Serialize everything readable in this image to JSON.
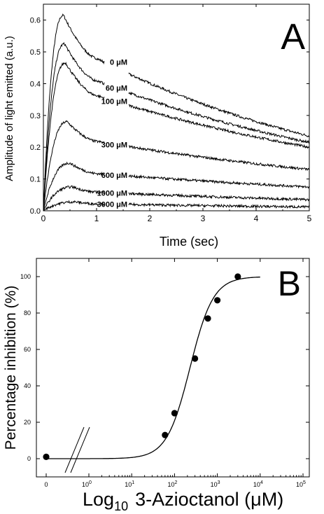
{
  "chart_data": [
    {
      "type": "line",
      "panel_label": "A",
      "xlabel": "Time  (sec)",
      "ylabel": "Amplitude  of  light  emitted  (a.u.)",
      "xlim": [
        0,
        5
      ],
      "ylim": [
        0,
        0.65
      ],
      "xticks": [
        "0",
        "1",
        "2",
        "3",
        "4",
        "5"
      ],
      "yticks": [
        "0.0",
        "0.1",
        "0.2",
        "0.3",
        "0.4",
        "0.5",
        "0.6"
      ],
      "unit": "μM",
      "series": [
        {
          "label": "0",
          "peak_x": 0.38,
          "peak_y": 0.615,
          "end_y": 0.235
        },
        {
          "label": "60",
          "peak_x": 0.4,
          "peak_y": 0.525,
          "end_y": 0.215
        },
        {
          "label": "100",
          "peak_x": 0.42,
          "peak_y": 0.465,
          "end_y": 0.2
        },
        {
          "label": "300",
          "peak_x": 0.45,
          "peak_y": 0.28,
          "end_y": 0.13
        },
        {
          "label": "600",
          "peak_x": 0.5,
          "peak_y": 0.15,
          "end_y": 0.075
        },
        {
          "label": "1000",
          "peak_x": 0.55,
          "peak_y": 0.075,
          "end_y": 0.035
        },
        {
          "label": "3000",
          "peak_x": 0.6,
          "peak_y": 0.028,
          "end_y": 0.012
        }
      ]
    },
    {
      "type": "scatter",
      "panel_label": "B",
      "xlabel_main": "Log",
      "xlabel_sub": "10",
      "xlabel_rest": "3-Azioctanol  (μM)",
      "ylabel": "Percentage  inhibition  (%)",
      "ylim": [
        -10,
        110
      ],
      "yticks": [
        "0",
        "20",
        "40",
        "60",
        "80",
        "100"
      ],
      "xticks_zero": "0",
      "xticks_log": [
        {
          "base": "10",
          "exp": "0"
        },
        {
          "base": "10",
          "exp": "1"
        },
        {
          "base": "10",
          "exp": "2"
        },
        {
          "base": "10",
          "exp": "3"
        },
        {
          "base": "10",
          "exp": "4"
        },
        {
          "base": "10",
          "exp": "5"
        }
      ],
      "points": [
        {
          "x": 0,
          "y": 1
        },
        {
          "x": 60,
          "y": 13
        },
        {
          "x": 100,
          "y": 25
        },
        {
          "x": 300,
          "y": 55
        },
        {
          "x": 600,
          "y": 77
        },
        {
          "x": 1000,
          "y": 87
        },
        {
          "x": 3000,
          "y": 100
        }
      ],
      "fit": {
        "ic50": 230,
        "hill": 1.6,
        "x_max": 10000
      }
    }
  ]
}
